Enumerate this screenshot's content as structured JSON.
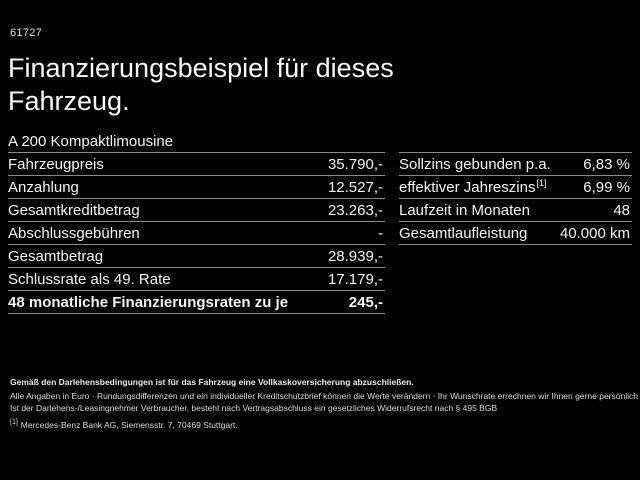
{
  "page": {
    "id_number": "61727",
    "title": "Finanzierungsbeispiel für dieses Fahrzeug."
  },
  "colors": {
    "background": "#000000",
    "text": "#f5f5f5",
    "divider": "#8a8a8a"
  },
  "left_table": {
    "header": "A 200 Kompaktlimousine",
    "rows": [
      {
        "label": "Fahrzeugpreis",
        "value": "35.790,-"
      },
      {
        "label": "Anzahlung",
        "value": "12.527,-"
      },
      {
        "label": "Gesamtkreditbetrag",
        "value": "23.263,-"
      },
      {
        "label": "Abschlussgebühren",
        "value": "-"
      },
      {
        "label": "Gesamtbetrag",
        "value": "28.939,-"
      },
      {
        "label": "Schlussrate als 49. Rate",
        "value": "17.179,-"
      }
    ],
    "total_row": {
      "label": "48 monatliche Finanzierungsraten zu je",
      "value": "245,-"
    }
  },
  "right_table": {
    "rows": [
      {
        "label": "Sollzins gebunden p.a.",
        "sup": "",
        "value": "6,83 %"
      },
      {
        "label": "effektiver Jahreszins",
        "sup": "[1]",
        "value": "6,99 %"
      },
      {
        "label": "Laufzeit in Monaten",
        "sup": "",
        "value": "48"
      },
      {
        "label": "Gesamtlaufleistung",
        "sup": "",
        "value": "40.000 km"
      }
    ]
  },
  "footer": {
    "insurance_note_bold": "Gemäß den Darlehensbedingungen ist für das Fahrzeug eine Vollkaskoversicherung abzuschließen.",
    "fine_print_line1": "Alle Angaben in Euro · Rundungsdifferenzen und ein individueller Kreditschutzbrief können die Werte verändern · Ihr Wunschrate errechnen wir Ihnen gerne persönlich",
    "fine_print_line2": "Ist der Darlehens-/Leasingnehmer Verbraucher, besteht nach Vertragsabschluss ein gesetzliches Widerrufsrecht nach § 495 BGB",
    "footnote1_marker": "[1]",
    "footnote1_text": "Mercedes-Benz Bank AG, Siemensstr. 7, 70469 Stuttgart."
  }
}
